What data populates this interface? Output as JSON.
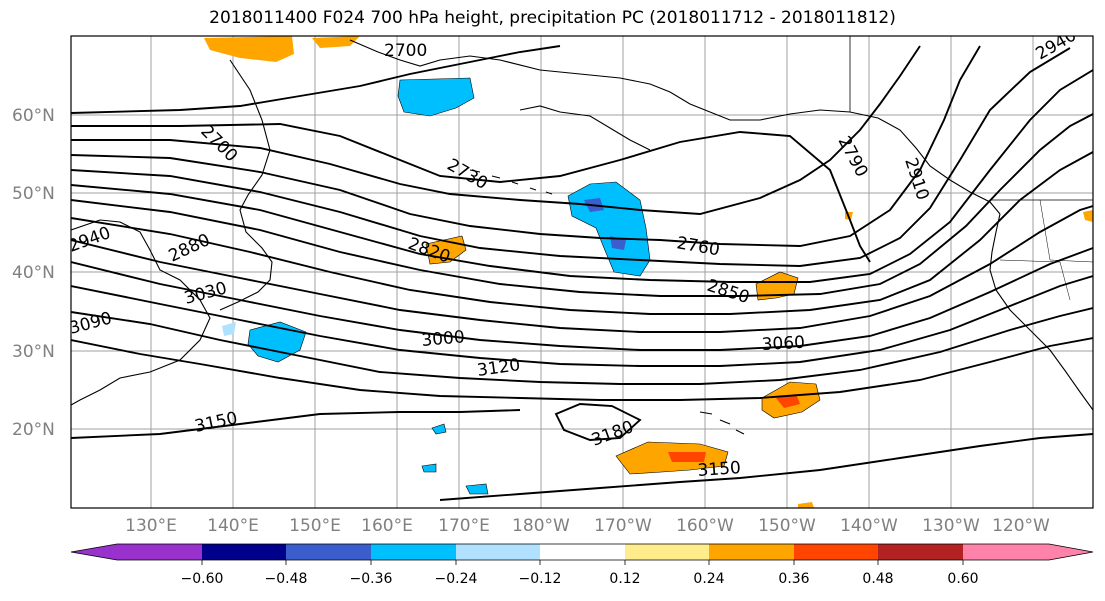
{
  "title": "2018011400 F024 700 hPa height, precipitation PC (2018011712 - 2018011812)",
  "lat_labels": [
    "60°N",
    "50°N",
    "40°N",
    "30°N",
    "20°N"
  ],
  "lon_labels": [
    "130°E",
    "140°E",
    "150°E",
    "160°E",
    "170°E",
    "180°W",
    "170°W",
    "160°W",
    "150°W",
    "140°W",
    "130°W",
    "120°W"
  ],
  "contour_labels": [
    "2700",
    "2700",
    "2730",
    "2760",
    "2790",
    "2820",
    "2850",
    "2880",
    "2910",
    "3000",
    "3030",
    "3060",
    "3090",
    "3120",
    "3150",
    "3150",
    "3180",
    "2940",
    "2940"
  ],
  "colorbar": {
    "labels": [
      "−0.60",
      "−0.48",
      "−0.36",
      "−0.24",
      "−0.12",
      "0.12",
      "0.24",
      "0.36",
      "0.48",
      "0.60"
    ],
    "colors": [
      "#9932cc",
      "#00008b",
      "#3a5fcd",
      "#00bfff",
      "#b0e2ff",
      "#ffffff",
      "#ffec8b",
      "#ffa500",
      "#ff4500",
      "#b22222",
      "#ff82ab"
    ]
  }
}
